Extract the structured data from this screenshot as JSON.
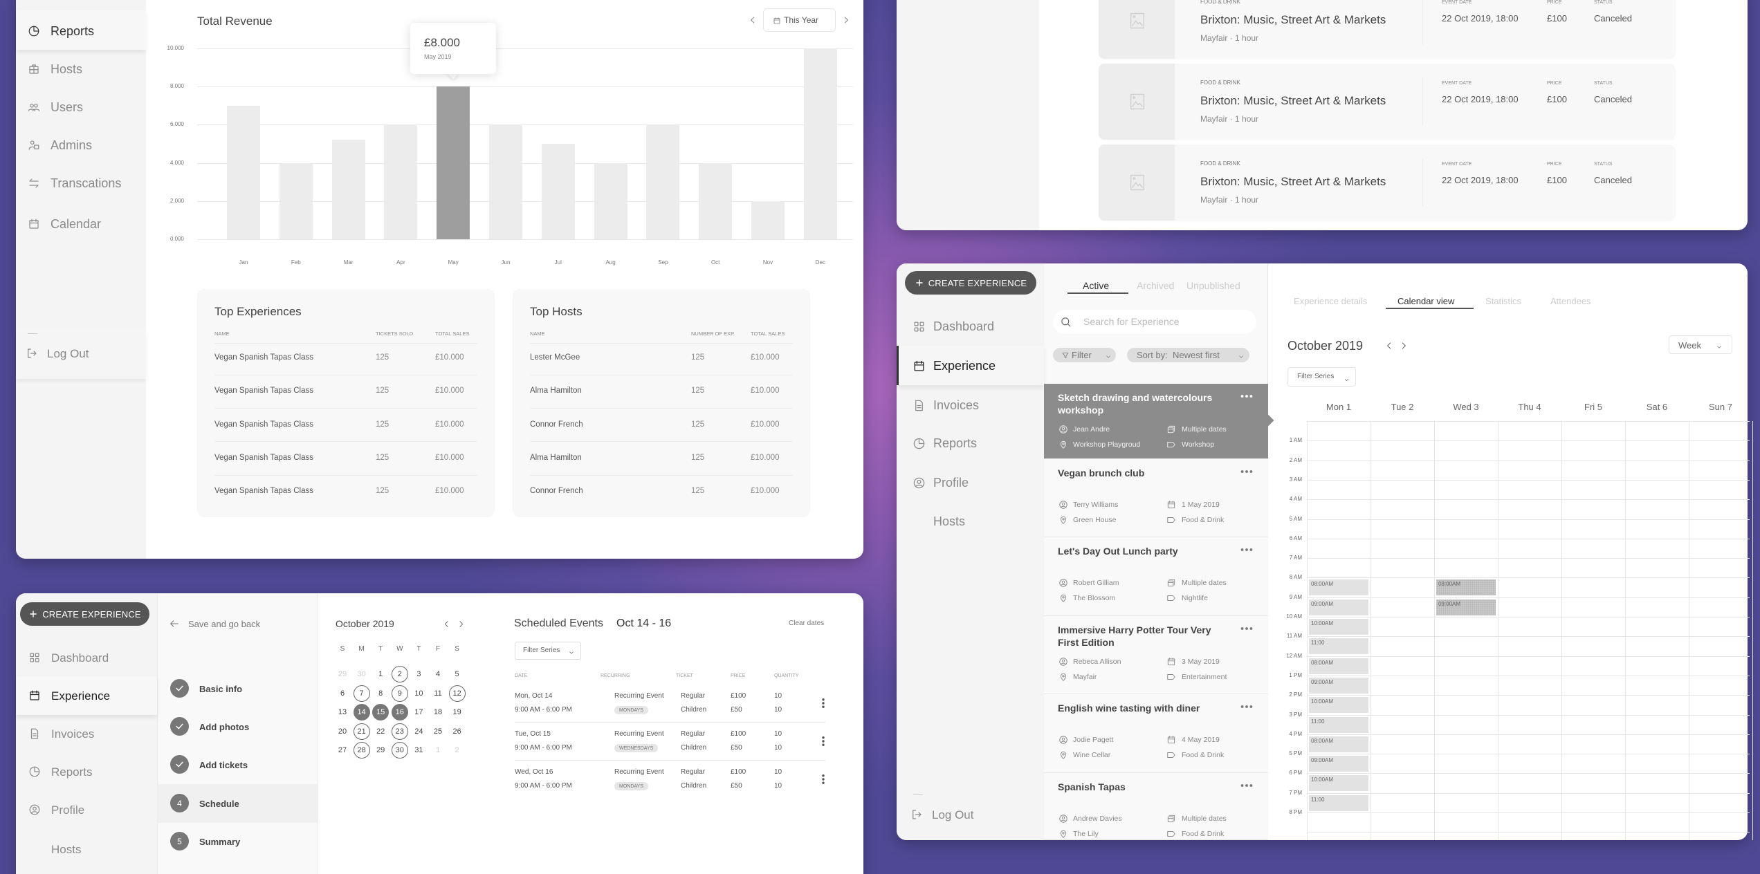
{
  "reports": {
    "sidebar": [
      {
        "label": "Reports",
        "icon": "pie-chart-icon"
      },
      {
        "label": "Hosts",
        "icon": "briefcase-icon"
      },
      {
        "label": "Users",
        "icon": "users-icon"
      },
      {
        "label": "Admins",
        "icon": "admin-icon"
      },
      {
        "label": "Transcations",
        "icon": "transfer-icon"
      },
      {
        "label": "Calendar",
        "icon": "calendar-icon"
      }
    ],
    "active": "Reports",
    "logout": "Log Out",
    "period": "This Year",
    "tooltip": {
      "value": "£8.000",
      "label": "May 2019"
    },
    "tables": [
      {
        "title": "Top Experiences",
        "columns": [
          "NAME",
          "TICKETS SOLD",
          "TOTAL SALES"
        ],
        "rows": [
          [
            "Vegan Spanish Tapas Class",
            "125",
            "£10.000"
          ],
          [
            "Vegan Spanish Tapas Class",
            "125",
            "£10.000"
          ],
          [
            "Vegan Spanish Tapas Class",
            "125",
            "£10.000"
          ],
          [
            "Vegan Spanish Tapas Class",
            "125",
            "£10.000"
          ],
          [
            "Vegan Spanish Tapas Class",
            "125",
            "£10.000"
          ]
        ]
      },
      {
        "title": "Top Hosts",
        "columns": [
          "NAME",
          "NUMBER OF EXP.",
          "TOTAL SALES"
        ],
        "rows": [
          [
            "Lester McGee",
            "125",
            "£10.000"
          ],
          [
            "Alma Hamilton",
            "125",
            "£10.000"
          ],
          [
            "Connor French",
            "125",
            "£10.000"
          ],
          [
            "Alma Hamilton",
            "125",
            "£10.000"
          ],
          [
            "Connor French",
            "125",
            "£10.000"
          ]
        ]
      }
    ]
  },
  "chart_data": {
    "type": "bar",
    "title": "Total Revenue",
    "categories": [
      "Jan",
      "Feb",
      "Mar",
      "Apr",
      "May",
      "Jun",
      "Jul",
      "Aug",
      "Sep",
      "Oct",
      "Nov",
      "Dec"
    ],
    "values": [
      7000,
      4000,
      5200,
      6000,
      8000,
      6000,
      5000,
      4000,
      6000,
      4000,
      2000,
      10000
    ],
    "ylim": [
      0,
      10000
    ],
    "yticks": [
      0,
      2000,
      4000,
      6000,
      8000,
      10000
    ],
    "ytick_labels": [
      "0.000",
      "2.000",
      "4.000",
      "6.000",
      "8.000",
      "10.000"
    ],
    "highlighted_category": "May",
    "grid": true,
    "colors": {
      "bar": "#ececec",
      "highlight": "#9e9e9e"
    }
  },
  "schedule": {
    "create_label": "CREATE EXPERIENCE",
    "nav": [
      {
        "label": "Dashboard",
        "icon": "grid-icon"
      },
      {
        "label": "Experience",
        "icon": "calendar-icon"
      },
      {
        "label": "Invoices",
        "icon": "file-icon"
      },
      {
        "label": "Reports",
        "icon": "pie-chart-icon"
      },
      {
        "label": "Profile",
        "icon": "user-circle-icon"
      },
      {
        "label": "Hosts",
        "icon": ""
      }
    ],
    "active": "Experience",
    "back": "Save and go back",
    "steps": [
      {
        "label": "Basic info",
        "status": "done",
        "number": ""
      },
      {
        "label": "Add photos",
        "status": "done",
        "number": ""
      },
      {
        "label": "Add tickets",
        "status": "done",
        "number": ""
      },
      {
        "label": "Schedule",
        "status": "current",
        "number": "4"
      },
      {
        "label": "Summary",
        "status": "todo",
        "number": "5"
      }
    ],
    "calendar": {
      "title": "October 2019",
      "weekdays": [
        "S",
        "M",
        "T",
        "W",
        "T",
        "F",
        "S"
      ],
      "weeks": [
        [
          {
            "d": "29",
            "s": "muted"
          },
          {
            "d": "30",
            "s": "muted"
          },
          {
            "d": "1",
            "s": ""
          },
          {
            "d": "2",
            "s": "marked"
          },
          {
            "d": "3",
            "s": ""
          },
          {
            "d": "4",
            "s": ""
          },
          {
            "d": "5",
            "s": ""
          }
        ],
        [
          {
            "d": "6",
            "s": ""
          },
          {
            "d": "7",
            "s": "marked"
          },
          {
            "d": "8",
            "s": ""
          },
          {
            "d": "9",
            "s": "marked"
          },
          {
            "d": "10",
            "s": ""
          },
          {
            "d": "11",
            "s": ""
          },
          {
            "d": "12",
            "s": "marked"
          }
        ],
        [
          {
            "d": "13",
            "s": ""
          },
          {
            "d": "14",
            "s": "selected"
          },
          {
            "d": "15",
            "s": "selected"
          },
          {
            "d": "16",
            "s": "selected"
          },
          {
            "d": "17",
            "s": ""
          },
          {
            "d": "18",
            "s": ""
          },
          {
            "d": "19",
            "s": ""
          }
        ],
        [
          {
            "d": "20",
            "s": ""
          },
          {
            "d": "21",
            "s": "marked"
          },
          {
            "d": "22",
            "s": ""
          },
          {
            "d": "23",
            "s": "marked"
          },
          {
            "d": "24",
            "s": ""
          },
          {
            "d": "25",
            "s": ""
          },
          {
            "d": "26",
            "s": ""
          }
        ],
        [
          {
            "d": "27",
            "s": ""
          },
          {
            "d": "28",
            "s": "marked"
          },
          {
            "d": "29",
            "s": ""
          },
          {
            "d": "30",
            "s": "marked"
          },
          {
            "d": "31",
            "s": ""
          },
          {
            "d": "1",
            "s": "muted"
          },
          {
            "d": "2",
            "s": "muted"
          }
        ]
      ]
    },
    "events": {
      "title": "Scheduled Events",
      "range": "Oct 14 - 16",
      "clear": "Clear dates",
      "filter": "Filter Series",
      "columns": [
        "DATE",
        "RECURRING",
        "TICKET",
        "PRICE",
        "QUANTITY"
      ],
      "rows": [
        {
          "date": "Mon, Oct 14",
          "time": "9:00 AM - 6:00 PM",
          "recurring": "Recurring Event",
          "tag": "MONDAYS",
          "tickets": [
            {
              "name": "Regular",
              "price": "£100",
              "qty": "10"
            },
            {
              "name": "Children",
              "price": "£50",
              "qty": "10"
            }
          ]
        },
        {
          "date": "Tue, Oct 15",
          "time": "9:00 AM - 6:00 PM",
          "recurring": "Recurring Event",
          "tag": "WEDNESDAYS",
          "tickets": [
            {
              "name": "Regular",
              "price": "£100",
              "qty": "10"
            },
            {
              "name": "Children",
              "price": "£50",
              "qty": "10"
            }
          ]
        },
        {
          "date": "Wed, Oct 16",
          "time": "9:00 AM - 6:00 PM",
          "recurring": "Recurring Event",
          "tag": "MONDAYS",
          "tickets": [
            {
              "name": "Regular",
              "price": "£100",
              "qty": "10"
            },
            {
              "name": "Children",
              "price": "£50",
              "qty": "10"
            }
          ]
        }
      ]
    }
  },
  "bookings": {
    "cards": [
      {
        "category": "FOOD & DRINK",
        "title": "Brixton: Music, Street Art & Markets",
        "location": "Mayfair",
        "duration": "1 hour",
        "date_label": "EVENT DATE",
        "date": "22 Oct 2019, 18:00",
        "price_label": "PRICE",
        "price": "£100",
        "status_label": "STATUS",
        "status": "Canceled"
      },
      {
        "category": "FOOD & DRINK",
        "title": "Brixton: Music, Street Art & Markets",
        "location": "Mayfair",
        "duration": "1 hour",
        "date_label": "EVENT DATE",
        "date": "22 Oct 2019, 18:00",
        "price_label": "PRICE",
        "price": "£100",
        "status_label": "STATUS",
        "status": "Canceled"
      },
      {
        "category": "FOOD & DRINK",
        "title": "Brixton: Music, Street Art & Markets",
        "location": "Mayfair",
        "duration": "1 hour",
        "date_label": "EVENT DATE",
        "date": "22 Oct 2019, 18:00",
        "price_label": "PRICE",
        "price": "£100",
        "status_label": "STATUS",
        "status": "Canceled"
      }
    ]
  },
  "experience": {
    "create_label": "CREATE EXPERIENCE",
    "nav": [
      {
        "label": "Dashboard",
        "icon": "grid-icon"
      },
      {
        "label": "Experience",
        "icon": "calendar-icon"
      },
      {
        "label": "Invoices",
        "icon": "file-icon"
      },
      {
        "label": "Reports",
        "icon": "pie-chart-icon"
      },
      {
        "label": "Profile",
        "icon": "user-circle-icon"
      },
      {
        "label": "Hosts",
        "icon": ""
      }
    ],
    "active": "Experience",
    "logout": "Log Out",
    "list_tabs": [
      "Active",
      "Archived",
      "Unpublished"
    ],
    "active_list_tab": "Active",
    "search_placeholder": "Search for Experience",
    "filter_label": "Filter",
    "sort_label": "Sort by:  Newest first",
    "items": [
      {
        "title": "Sketch drawing and watercolours workshop",
        "host": "Jean Andre",
        "venue": "Workshop Playgroud",
        "date": "Multiple dates",
        "date_icon": "calendars-icon",
        "category": "Workshop",
        "selected": true
      },
      {
        "title": "Vegan brunch club",
        "host": "Terry Williams",
        "venue": "Green House",
        "date": "1 May 2019",
        "date_icon": "calendar-icon",
        "category": "Food & Drink",
        "selected": false
      },
      {
        "title": "Let's Day Out Lunch party",
        "host": "Robert Gilliam",
        "venue": "The Blossom",
        "date": "Multiple dates",
        "date_icon": "calendars-icon",
        "category": "Nightlife",
        "selected": false
      },
      {
        "title": "Immersive Harry Potter Tour Very First Edition",
        "host": "Rebeca Allison",
        "venue": "Mayfair",
        "date": "3 May 2019",
        "date_icon": "calendar-icon",
        "category": "Entertainment",
        "selected": false
      },
      {
        "title": "English wine tasting with diner",
        "host": "Jodie Pagett",
        "venue": "Wine Cellar",
        "date": "4 May 2019",
        "date_icon": "calendar-icon",
        "category": "Food & Drink",
        "selected": false
      },
      {
        "title": "Spanish Tapas",
        "host": "Andrew Davies",
        "venue": "The Lily",
        "date": "Multiple dates",
        "date_icon": "calendars-icon",
        "category": "Food & Drink",
        "selected": false
      }
    ],
    "detail_tabs": [
      "Experience details",
      "Calendar view",
      "Statistics",
      "Attendees"
    ],
    "active_detail_tab": "Calendar view",
    "calendar": {
      "title": "October 2019",
      "view": "Week",
      "filter": "Filter Series",
      "days": [
        "Mon 1",
        "Tue 2",
        "Wed 3",
        "Thu 4",
        "Fri 5",
        "Sat 6",
        "Sun 7"
      ],
      "hours": [
        "1 AM",
        "2 AM",
        "3 AM",
        "4 AM",
        "5 AM",
        "6 AM",
        "7 AM",
        "8 AM",
        "9 AM",
        "10 AM",
        "11 AM",
        "12 AM",
        "1 PM",
        "2 PM",
        "3 PM",
        "4 PM",
        "5 PM",
        "6 PM",
        "7 PM",
        "8 PM"
      ],
      "events": [
        {
          "day": 0,
          "hour": 8,
          "label": "08:00AM",
          "highlight": false
        },
        {
          "day": 0,
          "hour": 9,
          "label": "09:00AM",
          "highlight": false
        },
        {
          "day": 0,
          "hour": 10,
          "label": "10:00AM",
          "highlight": false
        },
        {
          "day": 0,
          "hour": 11,
          "label": "11:00",
          "highlight": false
        },
        {
          "day": 0,
          "hour": 12,
          "label": "08:00AM",
          "highlight": false
        },
        {
          "day": 0,
          "hour": 13,
          "label": "09:00AM",
          "highlight": false
        },
        {
          "day": 0,
          "hour": 14,
          "label": "10:00AM",
          "highlight": false
        },
        {
          "day": 0,
          "hour": 15,
          "label": "11:00",
          "highlight": false
        },
        {
          "day": 0,
          "hour": 16,
          "label": "08:00AM",
          "highlight": false
        },
        {
          "day": 0,
          "hour": 17,
          "label": "09:00AM",
          "highlight": false
        },
        {
          "day": 0,
          "hour": 18,
          "label": "10:00AM",
          "highlight": false
        },
        {
          "day": 0,
          "hour": 19,
          "label": "11:00",
          "highlight": false
        },
        {
          "day": 2,
          "hour": 8,
          "label": "08:00AM",
          "highlight": true
        },
        {
          "day": 2,
          "hour": 9,
          "label": "09:00AM",
          "highlight": true
        }
      ]
    }
  }
}
